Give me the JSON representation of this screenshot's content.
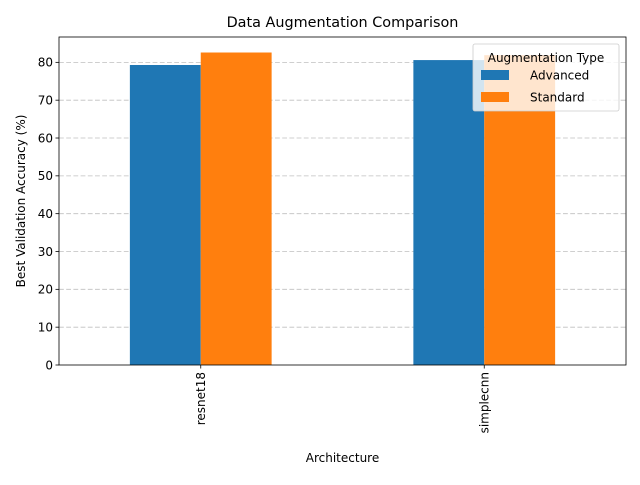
{
  "chart_data": {
    "type": "bar",
    "title": "Data Augmentation Comparison",
    "xlabel": "Architecture",
    "ylabel": "Best Validation Accuracy (%)",
    "categories": [
      "resnet18",
      "simplecnn"
    ],
    "series": [
      {
        "name": "Advanced",
        "values": [
          79.3,
          80.6
        ],
        "color": "#1f77b4"
      },
      {
        "name": "Standard",
        "values": [
          82.6,
          81.9
        ],
        "color": "#ff7f0e"
      }
    ],
    "ylim": [
      0,
      86.7
    ],
    "yticks": [
      0,
      10,
      20,
      30,
      40,
      50,
      60,
      70,
      80
    ],
    "grid": "y, dashed",
    "legend": {
      "title": "Augmentation Type",
      "placement": "top-right"
    }
  }
}
